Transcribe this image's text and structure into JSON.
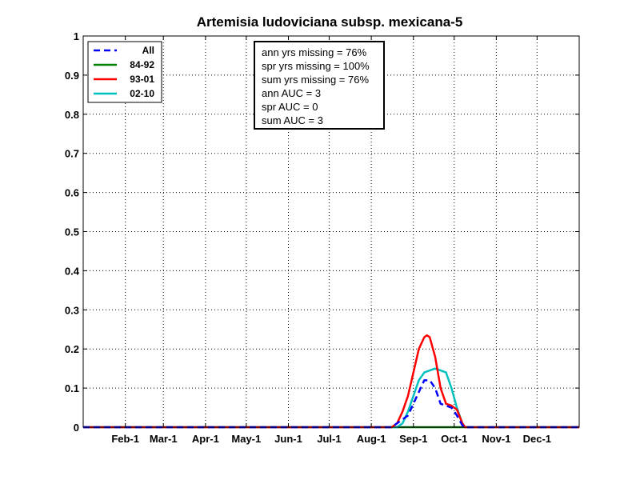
{
  "chart_data": {
    "type": "line",
    "title": "Artemisia ludoviciana subsp. mexicana-5",
    "xlabel": "",
    "ylabel": "",
    "xlim": [
      1,
      366
    ],
    "ylim": [
      0,
      1
    ],
    "grid": true,
    "legend_position": "top-left",
    "x_ticks": [
      {
        "label": "Feb-1",
        "value": 32
      },
      {
        "label": "Mar-1",
        "value": 60
      },
      {
        "label": "Apr-1",
        "value": 91
      },
      {
        "label": "May-1",
        "value": 121
      },
      {
        "label": "Jun-1",
        "value": 152
      },
      {
        "label": "Jul-1",
        "value": 182
      },
      {
        "label": "Aug-1",
        "value": 213
      },
      {
        "label": "Sep-1",
        "value": 244
      },
      {
        "label": "Oct-1",
        "value": 274
      },
      {
        "label": "Nov-1",
        "value": 305
      },
      {
        "label": "Dec-1",
        "value": 335
      }
    ],
    "y_ticks": [
      {
        "label": "0",
        "value": 0
      },
      {
        "label": "0.1",
        "value": 0.1
      },
      {
        "label": "0.2",
        "value": 0.2
      },
      {
        "label": "0.3",
        "value": 0.3
      },
      {
        "label": "0.4",
        "value": 0.4
      },
      {
        "label": "0.5",
        "value": 0.5
      },
      {
        "label": "0.6",
        "value": 0.6
      },
      {
        "label": "0.7",
        "value": 0.7
      },
      {
        "label": "0.8",
        "value": 0.8
      },
      {
        "label": "0.9",
        "value": 0.9
      },
      {
        "label": "1",
        "value": 1
      }
    ],
    "series": [
      {
        "name": "All",
        "color": "#0000ff",
        "dashed": true,
        "points": [
          [
            1,
            0
          ],
          [
            228,
            0
          ],
          [
            232,
            0.01
          ],
          [
            236,
            0.02
          ],
          [
            240,
            0.03
          ],
          [
            244,
            0.06
          ],
          [
            248,
            0.09
          ],
          [
            252,
            0.12
          ],
          [
            256,
            0.12
          ],
          [
            260,
            0.1
          ],
          [
            264,
            0.06
          ],
          [
            268,
            0.055
          ],
          [
            272,
            0.05
          ],
          [
            276,
            0.03
          ],
          [
            280,
            0.005
          ],
          [
            282,
            0
          ],
          [
            366,
            0
          ]
        ]
      },
      {
        "name": "84-92",
        "color": "#008000",
        "dashed": false,
        "points": [
          [
            1,
            0
          ],
          [
            366,
            0
          ]
        ]
      },
      {
        "name": "93-01",
        "color": "#ff0000",
        "dashed": false,
        "points": [
          [
            1,
            0
          ],
          [
            228,
            0
          ],
          [
            232,
            0.01
          ],
          [
            236,
            0.04
          ],
          [
            240,
            0.08
          ],
          [
            244,
            0.14
          ],
          [
            248,
            0.2
          ],
          [
            252,
            0.23
          ],
          [
            254,
            0.235
          ],
          [
            256,
            0.23
          ],
          [
            260,
            0.18
          ],
          [
            264,
            0.1
          ],
          [
            268,
            0.06
          ],
          [
            272,
            0.055
          ],
          [
            276,
            0.045
          ],
          [
            280,
            0.01
          ],
          [
            282,
            0
          ],
          [
            366,
            0
          ]
        ]
      },
      {
        "name": "02-10",
        "color": "#00bfbf",
        "dashed": false,
        "points": [
          [
            1,
            0
          ],
          [
            232,
            0
          ],
          [
            236,
            0.01
          ],
          [
            240,
            0.04
          ],
          [
            244,
            0.08
          ],
          [
            248,
            0.12
          ],
          [
            252,
            0.14
          ],
          [
            256,
            0.145
          ],
          [
            260,
            0.15
          ],
          [
            264,
            0.145
          ],
          [
            268,
            0.14
          ],
          [
            272,
            0.1
          ],
          [
            276,
            0.05
          ],
          [
            280,
            0.01
          ],
          [
            282,
            0
          ],
          [
            366,
            0
          ]
        ]
      }
    ],
    "annotation_lines": [
      "ann yrs missing = 76%",
      "spr yrs missing = 100%",
      "sum yrs missing = 76%",
      "ann AUC = 3",
      "spr AUC = 0",
      "sum AUC = 3"
    ]
  }
}
